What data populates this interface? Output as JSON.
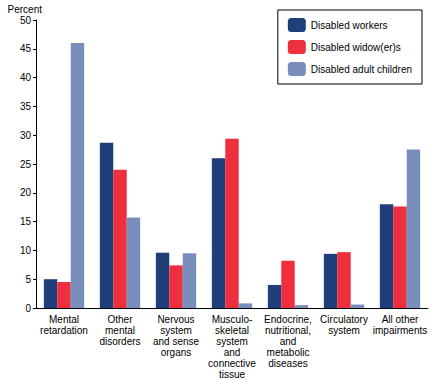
{
  "chart_data": {
    "type": "bar",
    "y_label": "Percent",
    "categories": [
      "Mental\nretardation",
      "Other\nmental\ndisorders",
      "Nervous\nsystem\nand sense\norgans",
      "Musculo-\nskeletal\nsystem\nand\nconnective\ntissue",
      "Endocrine,\nnutritional,\nand\nmetabolic\ndiseases",
      "Circulatory\nsystem",
      "All other\nimpairments"
    ],
    "series": [
      {
        "name": "Disabled workers",
        "color": "#1f3f7a",
        "values": [
          5.0,
          28.7,
          9.6,
          26.0,
          4.0,
          9.4,
          18.0
        ]
      },
      {
        "name": "Disabled widow(er)s",
        "color": "#ee2f3d",
        "values": [
          4.5,
          24.0,
          7.4,
          29.4,
          8.2,
          9.7,
          17.6
        ]
      },
      {
        "name": "Disabled adult children",
        "color": "#7a8ebe",
        "values": [
          46.0,
          15.7,
          9.5,
          0.8,
          0.5,
          0.6,
          27.5
        ]
      }
    ],
    "ylim": [
      0,
      50
    ],
    "yticks": [
      0,
      5,
      10,
      15,
      20,
      25,
      30,
      35,
      40,
      45,
      50
    ],
    "grid": false,
    "legend": "top-right"
  }
}
